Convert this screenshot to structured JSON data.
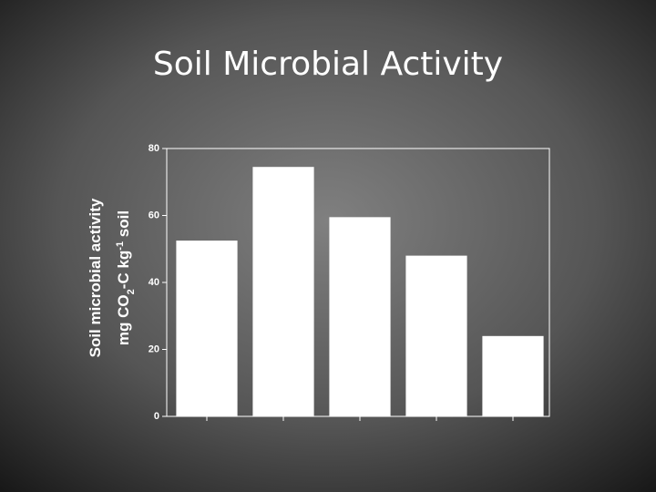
{
  "chart_data": {
    "type": "bar",
    "title": "Soil Microbial Activity",
    "y_label": [
      "Soil microbial activity",
      [
        "mg CO",
        "2",
        "-C kg",
        "-1",
        " soil"
      ]
    ],
    "categories": [
      null,
      null,
      null,
      null,
      null
    ],
    "values": [
      52.5,
      74.5,
      59.5,
      48,
      24
    ],
    "color": "#ffffff",
    "ylim": [
      0,
      80
    ],
    "yticks": [
      0,
      20,
      40,
      60,
      80
    ],
    "grid": false
  }
}
